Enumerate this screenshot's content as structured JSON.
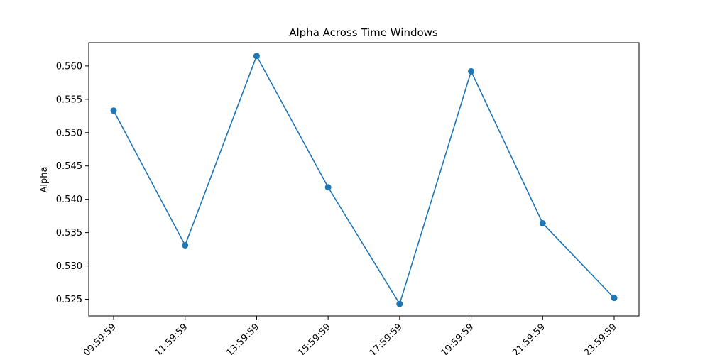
{
  "chart_data": {
    "type": "line",
    "title": "Alpha Across Time Windows",
    "xlabel": "",
    "ylabel": "Alpha",
    "categories": [
      "09:59:59",
      "11:59:59",
      "13:59:59",
      "15:59:59",
      "17:59:59",
      "19:59:59",
      "21:59:59",
      "23:59:59"
    ],
    "series": [
      {
        "values": [
          0.5533,
          0.5331,
          0.5615,
          0.5418,
          0.5243,
          0.5592,
          0.5364,
          0.5252
        ]
      }
    ],
    "ylim": [
      0.5225,
      0.5635
    ],
    "yticks": [
      0.525,
      0.53,
      0.535,
      0.54,
      0.545,
      0.55,
      0.555,
      0.56
    ],
    "grid": false,
    "line_color": "#1f77b4",
    "marker": "circle"
  }
}
